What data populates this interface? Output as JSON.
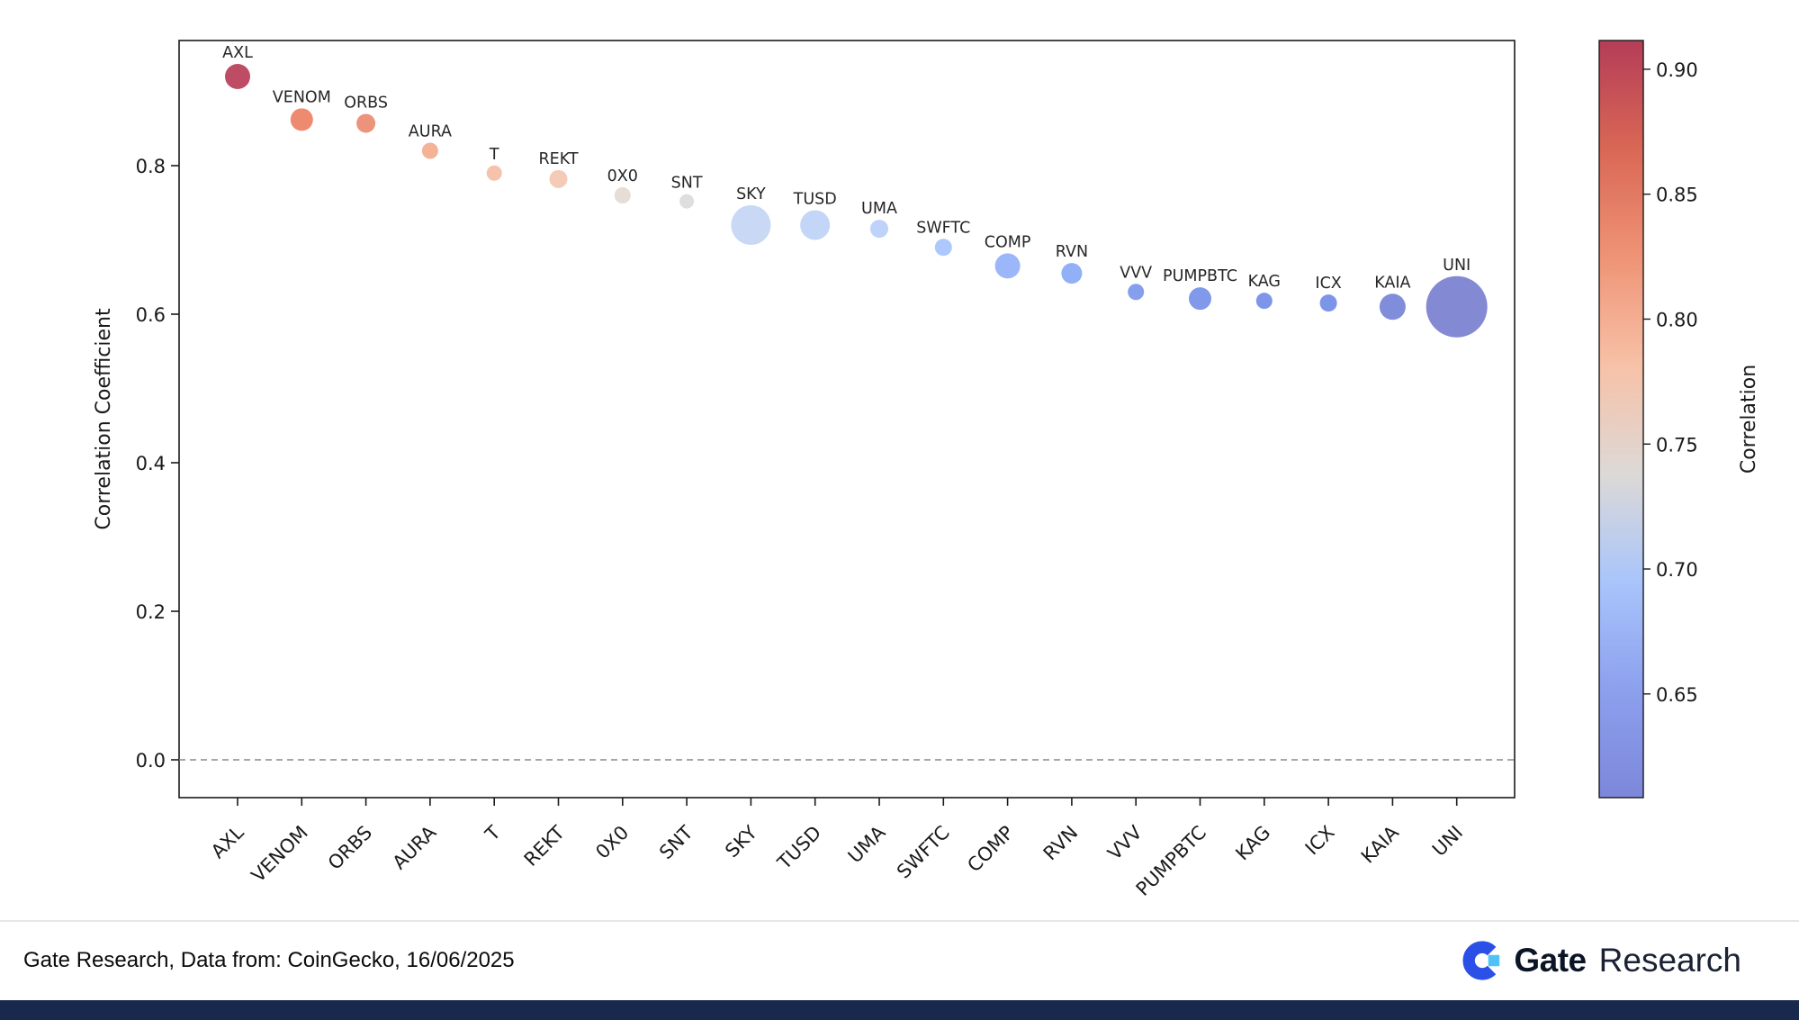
{
  "chart_data": {
    "type": "bubble",
    "title": "",
    "ylabel": "Correlation Coefficient",
    "ylim": [
      -0.05,
      0.97
    ],
    "yticks": [
      0.0,
      0.2,
      0.4,
      0.6,
      0.8
    ],
    "zero_line": 0.0,
    "grid": false,
    "points": [
      {
        "label": "AXL",
        "value": 0.92,
        "radius": 14,
        "color": "#b93d58"
      },
      {
        "label": "VENOM",
        "value": 0.862,
        "radius": 12.5,
        "color": "#ec8063"
      },
      {
        "label": "ORBS",
        "value": 0.857,
        "radius": 10.5,
        "color": "#ed8a70"
      },
      {
        "label": "AURA",
        "value": 0.82,
        "radius": 9,
        "color": "#f3ac8d"
      },
      {
        "label": "T",
        "value": 0.79,
        "radius": 8.5,
        "color": "#f5bda4"
      },
      {
        "label": "REKT",
        "value": 0.782,
        "radius": 10,
        "color": "#f3c7b1"
      },
      {
        "label": "0X0",
        "value": 0.76,
        "radius": 9,
        "color": "#e3dad3"
      },
      {
        "label": "SNT",
        "value": 0.752,
        "radius": 8,
        "color": "#dcdbdc"
      },
      {
        "label": "SKY",
        "value": 0.72,
        "radius": 22,
        "color": "#c3d5f4"
      },
      {
        "label": "TUSD",
        "value": 0.72,
        "radius": 16.5,
        "color": "#bed3f6"
      },
      {
        "label": "UMA",
        "value": 0.715,
        "radius": 10,
        "color": "#b8cefa"
      },
      {
        "label": "SWFTC",
        "value": 0.69,
        "radius": 9.5,
        "color": "#a6c3fc"
      },
      {
        "label": "COMP",
        "value": 0.665,
        "radius": 14,
        "color": "#92b1f9"
      },
      {
        "label": "RVN",
        "value": 0.655,
        "radius": 11.5,
        "color": "#89a9f7"
      },
      {
        "label": "VVV",
        "value": 0.63,
        "radius": 9,
        "color": "#7b97ec"
      },
      {
        "label": "PUMPBTC",
        "value": 0.621,
        "radius": 12.5,
        "color": "#7590e9"
      },
      {
        "label": "KAG",
        "value": 0.618,
        "radius": 9,
        "color": "#738de8"
      },
      {
        "label": "ICX",
        "value": 0.615,
        "radius": 9.5,
        "color": "#728ce7"
      },
      {
        "label": "KAIA",
        "value": 0.61,
        "radius": 14.5,
        "color": "#7583d8"
      },
      {
        "label": "UNI",
        "value": 0.61,
        "radius": 34,
        "color": "#7a7fd0"
      }
    ],
    "colorbar": {
      "label": "Correlation",
      "tick_values": [
        0.9,
        0.85,
        0.8,
        0.75,
        0.7,
        0.65
      ],
      "range": [
        0.6085,
        0.9115
      ],
      "gradient_top_to_bottom": [
        "#b43d58",
        "#d96755",
        "#ef9375",
        "#f7c1a7",
        "#ddd9d6",
        "#a9c5fb",
        "#8ca0ee",
        "#7d87d9"
      ]
    }
  },
  "footer": {
    "source": "Gate Research, Data from: CoinGecko, 16/06/2025",
    "logo_gate": "Gate",
    "logo_research": "Research"
  },
  "colors": {
    "bottom_bar": "#19294e",
    "divider": "#e6e6ea",
    "gate_blue": "#2b50e8",
    "gate_cyan": "#4fc3f7"
  }
}
